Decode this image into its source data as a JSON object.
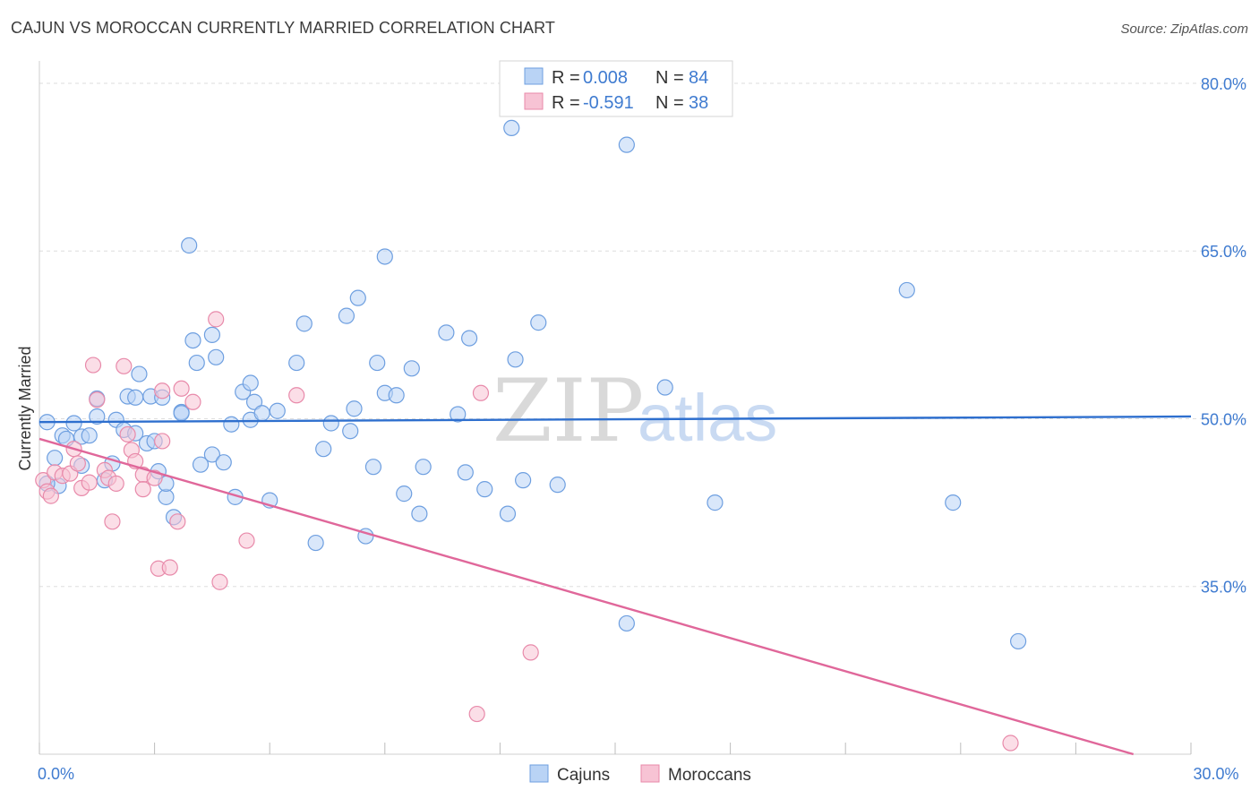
{
  "title": "CAJUN VS MOROCCAN CURRENTLY MARRIED CORRELATION CHART",
  "source": "Source: ZipAtlas.com",
  "watermark": {
    "zip": "ZIP",
    "atlas": "atlas"
  },
  "colors": {
    "cajun_fill": "#b9d3f5",
    "cajun_stroke": "#6e9fe0",
    "cajun_line": "#2e6fce",
    "moroccan_fill": "#f7c3d4",
    "moroccan_stroke": "#e88aaa",
    "moroccan_line": "#e0679a",
    "grid": "#dddddd",
    "tick_text": "#3f7bd0"
  },
  "chart_data": {
    "type": "scatter",
    "title": "CAJUN VS MOROCCAN CURRENTLY MARRIED CORRELATION CHART",
    "xlabel": "",
    "ylabel": "Currently Married",
    "xlim": [
      0,
      30
    ],
    "ylim": [
      20,
      82
    ],
    "x_tick_labels": [
      {
        "value": 0,
        "label": "0.0%"
      },
      {
        "value": 30,
        "label": "30.0%"
      }
    ],
    "y_tick_labels": [
      {
        "value": 80,
        "label": "80.0%"
      },
      {
        "value": 65,
        "label": "65.0%"
      },
      {
        "value": 50,
        "label": "50.0%"
      },
      {
        "value": 35,
        "label": "35.0%"
      }
    ],
    "legend": [
      {
        "series": "Cajuns",
        "r_label": "R =",
        "r": "0.008",
        "n_label": "N =",
        "n": "84"
      },
      {
        "series": "Moroccans",
        "r_label": "R =",
        "r": "-0.591",
        "n_label": "N =",
        "n": "38"
      }
    ],
    "series": [
      {
        "name": "Cajuns",
        "trend": {
          "x": [
            0,
            30
          ],
          "y": [
            49.7,
            50.2
          ]
        },
        "points": [
          {
            "x": 0.2,
            "y": 49.7
          },
          {
            "x": 0.4,
            "y": 46.5
          },
          {
            "x": 0.6,
            "y": 48.5
          },
          {
            "x": 0.5,
            "y": 44
          },
          {
            "x": 0.7,
            "y": 48.2
          },
          {
            "x": 0.9,
            "y": 49.6
          },
          {
            "x": 1.1,
            "y": 48.4
          },
          {
            "x": 1.1,
            "y": 45.8
          },
          {
            "x": 1.3,
            "y": 48.5
          },
          {
            "x": 1.5,
            "y": 50.2
          },
          {
            "x": 1.5,
            "y": 51.8
          },
          {
            "x": 1.7,
            "y": 44.5
          },
          {
            "x": 1.9,
            "y": 46
          },
          {
            "x": 2.0,
            "y": 49.9
          },
          {
            "x": 2.2,
            "y": 49
          },
          {
            "x": 2.3,
            "y": 52
          },
          {
            "x": 2.5,
            "y": 48.7
          },
          {
            "x": 2.5,
            "y": 51.9
          },
          {
            "x": 2.6,
            "y": 54
          },
          {
            "x": 2.8,
            "y": 47.8
          },
          {
            "x": 2.9,
            "y": 52
          },
          {
            "x": 3.0,
            "y": 48
          },
          {
            "x": 3.1,
            "y": 45.3
          },
          {
            "x": 3.3,
            "y": 43
          },
          {
            "x": 3.3,
            "y": 44.2
          },
          {
            "x": 3.5,
            "y": 41.2
          },
          {
            "x": 3.7,
            "y": 50.6
          },
          {
            "x": 3.7,
            "y": 50.5
          },
          {
            "x": 3.9,
            "y": 65.5
          },
          {
            "x": 4.0,
            "y": 57
          },
          {
            "x": 4.1,
            "y": 55
          },
          {
            "x": 4.2,
            "y": 45.9
          },
          {
            "x": 4.5,
            "y": 57.5
          },
          {
            "x": 4.5,
            "y": 46.8
          },
          {
            "x": 4.6,
            "y": 55.5
          },
          {
            "x": 4.8,
            "y": 46.1
          },
          {
            "x": 5.0,
            "y": 49.5
          },
          {
            "x": 5.1,
            "y": 43
          },
          {
            "x": 5.3,
            "y": 52.4
          },
          {
            "x": 5.5,
            "y": 53.2
          },
          {
            "x": 5.5,
            "y": 49.9
          },
          {
            "x": 5.6,
            "y": 51.5
          },
          {
            "x": 5.8,
            "y": 50.5
          },
          {
            "x": 6.0,
            "y": 42.7
          },
          {
            "x": 6.2,
            "y": 50.7
          },
          {
            "x": 6.7,
            "y": 55
          },
          {
            "x": 6.9,
            "y": 58.5
          },
          {
            "x": 7.2,
            "y": 38.9
          },
          {
            "x": 7.4,
            "y": 47.3
          },
          {
            "x": 7.6,
            "y": 49.6
          },
          {
            "x": 8.0,
            "y": 59.2
          },
          {
            "x": 8.1,
            "y": 48.9
          },
          {
            "x": 8.2,
            "y": 50.9
          },
          {
            "x": 8.3,
            "y": 60.8
          },
          {
            "x": 8.5,
            "y": 39.5
          },
          {
            "x": 8.7,
            "y": 45.7
          },
          {
            "x": 8.8,
            "y": 55
          },
          {
            "x": 9.0,
            "y": 52.3
          },
          {
            "x": 9.0,
            "y": 64.5
          },
          {
            "x": 9.3,
            "y": 52.1
          },
          {
            "x": 9.5,
            "y": 43.3
          },
          {
            "x": 9.7,
            "y": 54.5
          },
          {
            "x": 9.9,
            "y": 41.5
          },
          {
            "x": 10.0,
            "y": 45.7
          },
          {
            "x": 10.6,
            "y": 57.7
          },
          {
            "x": 10.9,
            "y": 50.4
          },
          {
            "x": 11.1,
            "y": 45.2
          },
          {
            "x": 11.2,
            "y": 57.2
          },
          {
            "x": 11.6,
            "y": 43.7
          },
          {
            "x": 12.2,
            "y": 41.5
          },
          {
            "x": 12.4,
            "y": 55.3
          },
          {
            "x": 12.3,
            "y": 76
          },
          {
            "x": 12.6,
            "y": 44.5
          },
          {
            "x": 13.0,
            "y": 58.6
          },
          {
            "x": 13.5,
            "y": 44.1
          },
          {
            "x": 15.3,
            "y": 74.5
          },
          {
            "x": 15.3,
            "y": 31.7
          },
          {
            "x": 16.3,
            "y": 52.8
          },
          {
            "x": 17.6,
            "y": 42.5
          },
          {
            "x": 22.6,
            "y": 61.5
          },
          {
            "x": 23.8,
            "y": 42.5
          },
          {
            "x": 25.5,
            "y": 30.1
          },
          {
            "x": 0.2,
            "y": 44.2
          },
          {
            "x": 3.2,
            "y": 51.9
          }
        ]
      },
      {
        "name": "Moroccans",
        "trend": {
          "x": [
            0,
            28.5
          ],
          "y": [
            48.2,
            20
          ]
        },
        "points": [
          {
            "x": 0.1,
            "y": 44.5
          },
          {
            "x": 0.2,
            "y": 43.5
          },
          {
            "x": 0.3,
            "y": 43.1
          },
          {
            "x": 0.4,
            "y": 45.2
          },
          {
            "x": 0.6,
            "y": 44.9
          },
          {
            "x": 0.8,
            "y": 45.1
          },
          {
            "x": 0.9,
            "y": 47.3
          },
          {
            "x": 1.0,
            "y": 46
          },
          {
            "x": 1.1,
            "y": 43.8
          },
          {
            "x": 1.3,
            "y": 44.3
          },
          {
            "x": 1.4,
            "y": 54.8
          },
          {
            "x": 1.5,
            "y": 51.7
          },
          {
            "x": 1.7,
            "y": 45.4
          },
          {
            "x": 1.8,
            "y": 44.7
          },
          {
            "x": 1.9,
            "y": 40.8
          },
          {
            "x": 2.0,
            "y": 44.2
          },
          {
            "x": 2.2,
            "y": 54.7
          },
          {
            "x": 2.3,
            "y": 48.6
          },
          {
            "x": 2.4,
            "y": 47.2
          },
          {
            "x": 2.5,
            "y": 46.2
          },
          {
            "x": 2.7,
            "y": 45
          },
          {
            "x": 2.7,
            "y": 43.7
          },
          {
            "x": 3.0,
            "y": 44.7
          },
          {
            "x": 3.1,
            "y": 36.6
          },
          {
            "x": 3.2,
            "y": 48
          },
          {
            "x": 3.2,
            "y": 52.5
          },
          {
            "x": 3.4,
            "y": 36.7
          },
          {
            "x": 3.6,
            "y": 40.8
          },
          {
            "x": 3.7,
            "y": 52.7
          },
          {
            "x": 4.0,
            "y": 51.5
          },
          {
            "x": 4.6,
            "y": 58.9
          },
          {
            "x": 4.7,
            "y": 35.4
          },
          {
            "x": 5.4,
            "y": 39.1
          },
          {
            "x": 6.7,
            "y": 52.1
          },
          {
            "x": 11.4,
            "y": 23.6
          },
          {
            "x": 11.5,
            "y": 52.3
          },
          {
            "x": 12.8,
            "y": 29.1
          },
          {
            "x": 25.3,
            "y": 21
          }
        ]
      }
    ]
  }
}
